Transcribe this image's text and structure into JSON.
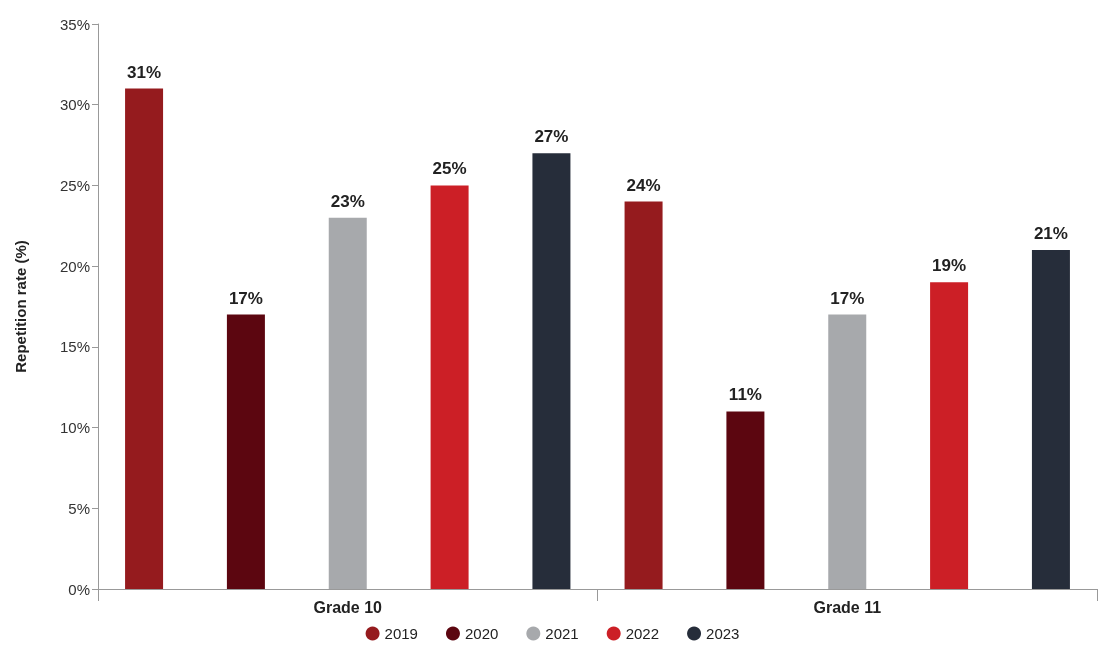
{
  "chart_data": {
    "type": "bar",
    "ylabel": "Repetition rate (%)",
    "categories": [
      "Grade 10",
      "Grade 11"
    ],
    "series": [
      {
        "name": "2019",
        "color": "#951b1e",
        "values": [
          31,
          24
        ],
        "value_labels": [
          "31%",
          "24%"
        ]
      },
      {
        "name": "2020",
        "color": "#5c0610",
        "values": [
          17,
          11
        ],
        "value_labels": [
          "17%",
          "11%"
        ]
      },
      {
        "name": "2021",
        "color": "#a7a9ac",
        "values": [
          23,
          17
        ],
        "value_labels": [
          "23%",
          "17%"
        ]
      },
      {
        "name": "2022",
        "color": "#cc1f26",
        "values": [
          25,
          19
        ],
        "value_labels": [
          "25%",
          "19%"
        ]
      },
      {
        "name": "2023",
        "color": "#262d3a",
        "values": [
          27,
          21
        ],
        "value_labels": [
          "27%",
          "21%"
        ]
      }
    ],
    "ylim": [
      0,
      35
    ],
    "yticks": [
      {
        "value": 0,
        "label": "0%"
      },
      {
        "value": 5,
        "label": "5%"
      },
      {
        "value": 10,
        "label": "10%"
      },
      {
        "value": 15,
        "label": "15%"
      },
      {
        "value": 20,
        "label": "20%"
      },
      {
        "value": 25,
        "label": "25%"
      },
      {
        "value": 30,
        "label": "30%"
      },
      {
        "value": 35,
        "label": "35%"
      }
    ],
    "grid": false,
    "legend": "bottom"
  }
}
